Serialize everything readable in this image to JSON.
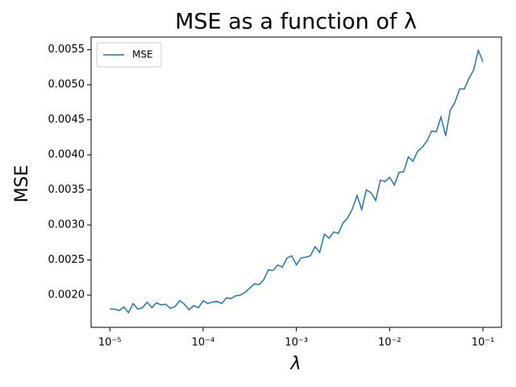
{
  "chart_data": {
    "type": "line",
    "title": "MSE as a function of λ",
    "xlabel": "λ",
    "ylabel": "MSE",
    "log_x": true,
    "legend": "upper left",
    "x": [
      1e-05,
      1.122e-05,
      1.259e-05,
      1.413e-05,
      1.585e-05,
      1.778e-05,
      1.995e-05,
      2.239e-05,
      2.512e-05,
      2.818e-05,
      3.162e-05,
      3.548e-05,
      3.981e-05,
      4.467e-05,
      5.012e-05,
      5.623e-05,
      6.31e-05,
      7.079e-05,
      7.943e-05,
      8.913e-05,
      0.0001,
      0.0001122,
      0.0001259,
      0.0001413,
      0.0001585,
      0.0001778,
      0.0001995,
      0.0002239,
      0.0002512,
      0.0002818,
      0.0003162,
      0.0003548,
      0.0003981,
      0.0004467,
      0.0005012,
      0.0005623,
      0.000631,
      0.0007079,
      0.0007943,
      0.0008913,
      0.001,
      0.001122,
      0.001259,
      0.001413,
      0.001585,
      0.001778,
      0.001995,
      0.002239,
      0.002512,
      0.002818,
      0.003162,
      0.003548,
      0.003981,
      0.004467,
      0.005012,
      0.005623,
      0.00631,
      0.007079,
      0.007943,
      0.008913,
      0.01,
      0.01122,
      0.01259,
      0.01413,
      0.01585,
      0.01778,
      0.01995,
      0.02239,
      0.02512,
      0.02818,
      0.03162,
      0.03548,
      0.03981,
      0.04467,
      0.05012,
      0.05623,
      0.0631,
      0.07079,
      0.07943,
      0.08913,
      0.1
    ],
    "series": [
      {
        "name": "MSE",
        "color": "#1f77b4",
        "values": [
          0.0018,
          0.0018,
          0.00178,
          0.00183,
          0.00175,
          0.00188,
          0.0018,
          0.00182,
          0.0019,
          0.00182,
          0.00189,
          0.00186,
          0.00187,
          0.00181,
          0.00184,
          0.00192,
          0.00187,
          0.00179,
          0.00185,
          0.00182,
          0.00192,
          0.00188,
          0.0019,
          0.00191,
          0.00188,
          0.00196,
          0.00195,
          0.00199,
          0.002,
          0.00204,
          0.0021,
          0.00216,
          0.00215,
          0.00222,
          0.00236,
          0.00235,
          0.00243,
          0.0024,
          0.00253,
          0.00256,
          0.00243,
          0.00253,
          0.00254,
          0.00256,
          0.00269,
          0.00261,
          0.00287,
          0.00281,
          0.0029,
          0.00288,
          0.00303,
          0.0031,
          0.00323,
          0.00342,
          0.00322,
          0.0035,
          0.00346,
          0.00335,
          0.00364,
          0.00362,
          0.00368,
          0.00357,
          0.00375,
          0.00376,
          0.00397,
          0.00391,
          0.00405,
          0.00411,
          0.0042,
          0.00434,
          0.00433,
          0.00454,
          0.00427,
          0.00464,
          0.00475,
          0.00494,
          0.00494,
          0.00509,
          0.00521,
          0.00549,
          0.00533
        ]
      }
    ],
    "xlim": [
      6.3e-06,
      0.158
    ],
    "xticks": [
      {
        "value": 1e-05,
        "label": "10⁻⁵"
      },
      {
        "value": 0.0001,
        "label": "10⁻⁴"
      },
      {
        "value": 0.001,
        "label": "10⁻³"
      },
      {
        "value": 0.01,
        "label": "10⁻²"
      },
      {
        "value": 0.1,
        "label": "10⁻¹"
      }
    ],
    "ylim": [
      0.00154,
      0.00568
    ],
    "yticks": [
      {
        "value": 0.002,
        "label": "0.0020"
      },
      0.0025,
      {
        "value": 0.003,
        "label": "0.0030"
      },
      0.0035,
      {
        "value": 0.004,
        "label": "0.0040"
      },
      0.0045,
      {
        "value": 0.005,
        "label": "0.0050"
      },
      0.0055
    ]
  }
}
